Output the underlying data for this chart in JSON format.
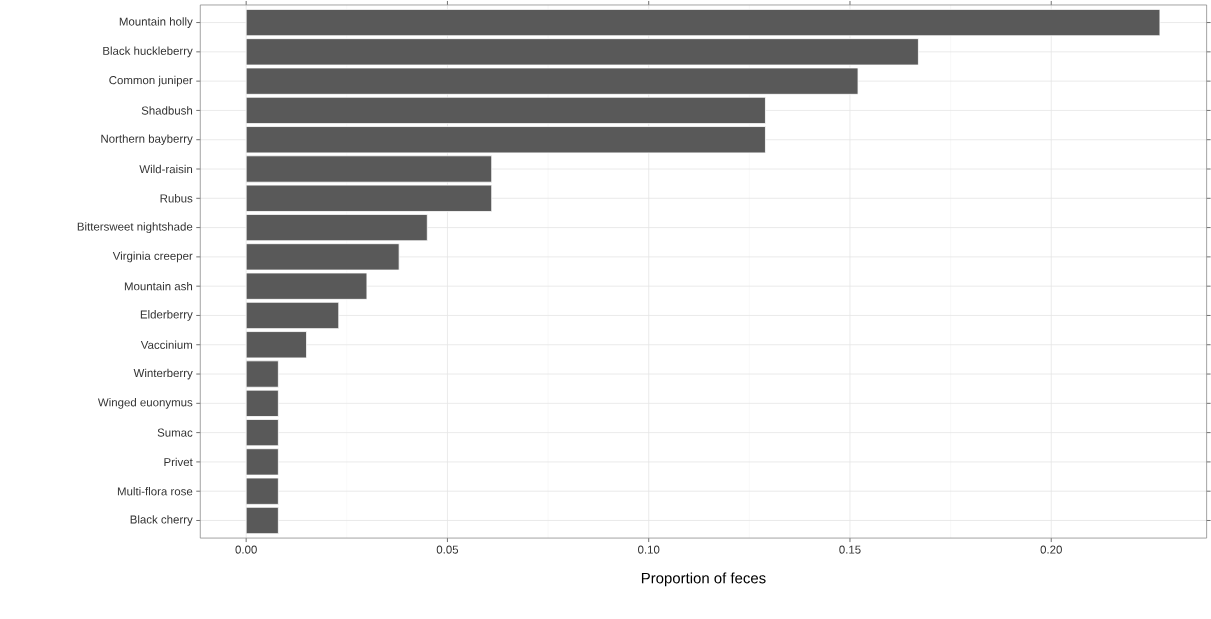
{
  "chart_data": {
    "type": "bar",
    "orientation": "horizontal",
    "xlabel": "Proportion of feces",
    "categories": [
      "Mountain holly",
      "Black huckleberry",
      "Common juniper",
      "Shadbush",
      "Northern bayberry",
      "Wild-raisin",
      "Rubus",
      "Bittersweet nightshade",
      "Virginia creeper",
      "Mountain ash",
      "Elderberry",
      "Vaccinium",
      "Winterberry",
      "Winged euonymus",
      "Sumac",
      "Privet",
      "Multi-flora rose",
      "Black cherry"
    ],
    "values": [
      0.227,
      0.167,
      0.152,
      0.129,
      0.129,
      0.061,
      0.061,
      0.045,
      0.038,
      0.03,
      0.023,
      0.015,
      0.008,
      0.008,
      0.008,
      0.008,
      0.008,
      0.008
    ],
    "color": "#595959",
    "xlim": [
      -0.0114,
      0.2386
    ],
    "xticks": [
      {
        "value": 0,
        "label": "0.00"
      },
      {
        "value": 0.05,
        "label": "0.05"
      },
      {
        "value": 0.1,
        "label": "0.10"
      },
      {
        "value": 0.15,
        "label": "0.15"
      },
      {
        "value": 0.2,
        "label": "0.20"
      }
    ],
    "grid": true
  }
}
